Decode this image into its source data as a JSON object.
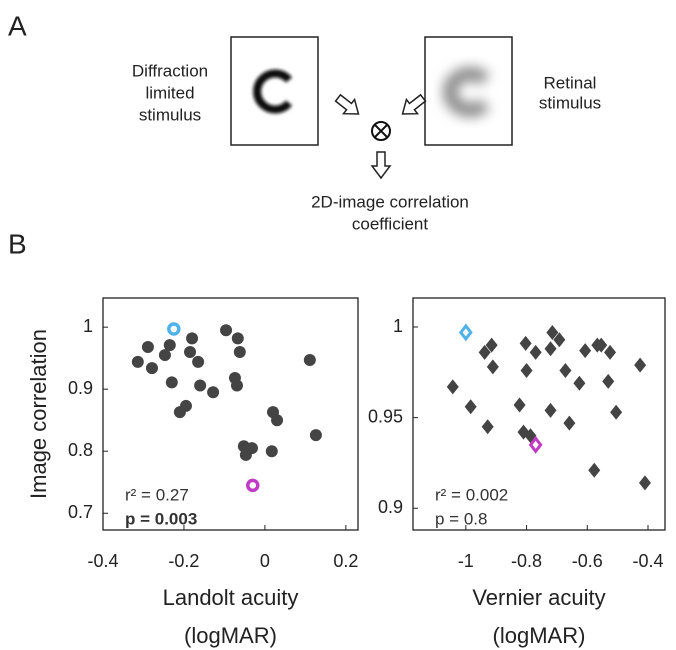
{
  "panel_labels": [
    "A",
    "B"
  ],
  "diagram": {
    "left_label": [
      "Diffraction",
      "limited",
      "stimulus"
    ],
    "right_label": [
      "Retinal",
      "stimulus"
    ],
    "output_label": [
      "2D-image correlation",
      "coefficient"
    ]
  },
  "chart_data": [
    {
      "type": "scatter",
      "xlim": [
        -0.4,
        0.23
      ],
      "ylim": [
        0.673,
        1.047
      ],
      "xticks": [
        -0.4,
        -0.2,
        0,
        0.2
      ],
      "yticks": [
        0.7,
        0.8,
        0.9,
        1
      ],
      "ylabel": "Image correlation",
      "xlabel": [
        "Landolt acuity",
        "(logMAR)"
      ],
      "annotations": [
        "r² = 0.27",
        "p = 0.003"
      ],
      "annotation_bold": [
        false,
        true
      ],
      "series": [
        {
          "color": "#444444",
          "marker": "circle",
          "filled": true,
          "x": [
            -0.314,
            -0.289,
            -0.279,
            -0.247,
            -0.235,
            -0.23,
            -0.21,
            -0.195,
            -0.185,
            -0.18,
            -0.165,
            -0.16,
            -0.128,
            -0.096,
            -0.067,
            -0.062,
            -0.074,
            -0.069,
            -0.052,
            -0.047,
            -0.032,
            0.02,
            0.03,
            0.017,
            0.111,
            0.126
          ],
          "values": [
            0.944,
            0.968,
            0.934,
            0.955,
            0.971,
            0.911,
            0.863,
            0.873,
            0.96,
            0.982,
            0.944,
            0.906,
            0.895,
            0.995,
            0.982,
            0.96,
            0.918,
            0.906,
            0.808,
            0.794,
            0.805,
            0.863,
            0.85,
            0.8,
            0.947,
            0.826
          ]
        },
        {
          "color": "#4fb3ea",
          "marker": "circle",
          "filled": false,
          "x": [
            -0.225
          ],
          "values": [
            0.997
          ]
        },
        {
          "color": "#c23bc4",
          "marker": "circle",
          "filled": false,
          "x": [
            -0.03
          ],
          "values": [
            0.745
          ]
        }
      ]
    },
    {
      "type": "scatter",
      "xlim": [
        -1.174,
        -0.344
      ],
      "ylim": [
        0.888,
        1.016
      ],
      "xticks": [
        -1,
        -0.8,
        -0.6,
        -0.4
      ],
      "yticks": [
        0.9,
        0.95,
        1
      ],
      "xlabel": [
        "Vernier acuity",
        "(logMAR)"
      ],
      "annotations": [
        "r² = 0.002",
        "p = 0.8"
      ],
      "annotation_bold": [
        false,
        false
      ],
      "series": [
        {
          "color": "#444444",
          "marker": "diamond",
          "filled": true,
          "x": [
            -1.043,
            -0.984,
            -0.938,
            -0.928,
            -0.915,
            -0.911,
            -0.823,
            -0.81,
            -0.803,
            -0.8,
            -0.787,
            -0.77,
            -0.721,
            -0.721,
            -0.715,
            -0.692,
            -0.672,
            -0.659,
            -0.626,
            -0.607,
            -0.567,
            -0.554,
            -0.577,
            -0.531,
            -0.525,
            -0.505,
            -0.426,
            -0.41
          ],
          "values": [
            0.967,
            0.956,
            0.986,
            0.945,
            0.99,
            0.978,
            0.957,
            0.942,
            0.991,
            0.976,
            0.94,
            0.986,
            0.988,
            0.954,
            0.997,
            0.993,
            0.976,
            0.947,
            0.969,
            0.987,
            0.99,
            0.99,
            0.921,
            0.97,
            0.986,
            0.953,
            0.979,
            0.914
          ]
        },
        {
          "color": "#4fb3ea",
          "marker": "diamond",
          "filled": false,
          "x": [
            -1.0
          ],
          "values": [
            0.997
          ]
        },
        {
          "color": "#c23bc4",
          "marker": "diamond",
          "filled": false,
          "x": [
            -0.77
          ],
          "values": [
            0.935
          ]
        }
      ]
    }
  ]
}
